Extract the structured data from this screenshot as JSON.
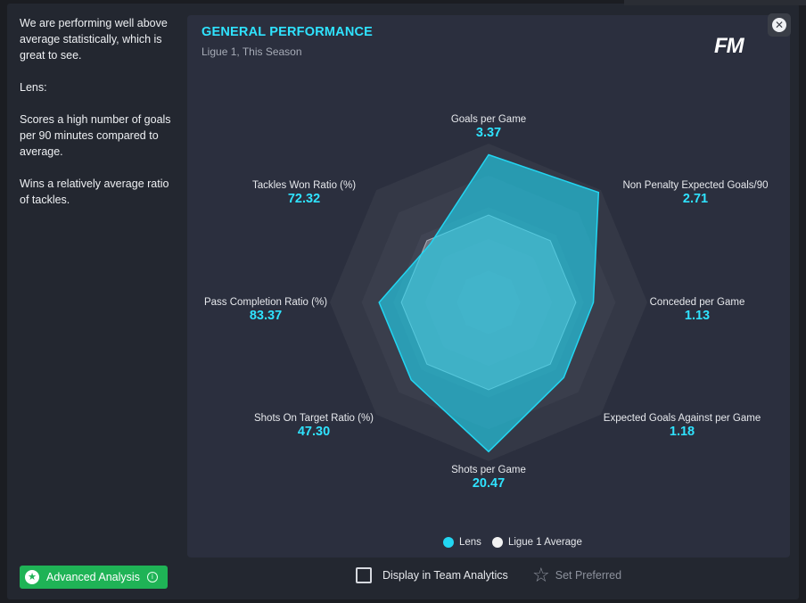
{
  "sidebar": {
    "paragraphs": [
      "We are performing well above average statistically, which is great to see.",
      "Lens:",
      "Scores a high number of goals per 90 minutes compared to average.",
      "Wins a relatively average ratio of tackles."
    ]
  },
  "panel": {
    "title": "GENERAL PERFORMANCE",
    "subtitle": "Ligue 1, This Season",
    "logo": "FM"
  },
  "chart_data": {
    "type": "radar",
    "axes": [
      {
        "name": "Goals per Game",
        "value": "3.37",
        "team": 0.93,
        "avg": 0.55
      },
      {
        "name": "Non Penalty Expected Goals/90",
        "value": "2.71",
        "team": 0.98,
        "avg": 0.55
      },
      {
        "name": "Conceded per Game",
        "value": "1.13",
        "team": 0.66,
        "avg": 0.55
      },
      {
        "name": "Expected Goals Against per Game",
        "value": "1.18",
        "team": 0.67,
        "avg": 0.55
      },
      {
        "name": "Shots per Game",
        "value": "20.47",
        "team": 0.94,
        "avg": 0.55
      },
      {
        "name": "Shots On Target Ratio (%)",
        "value": "47.30",
        "team": 0.69,
        "avg": 0.55
      },
      {
        "name": "Pass Completion Ratio (%)",
        "value": "83.37",
        "team": 0.69,
        "avg": 0.55
      },
      {
        "name": "Tackles Won Ratio (%)",
        "value": "72.32",
        "team": 0.52,
        "avg": 0.55
      }
    ],
    "series": [
      {
        "name": "Lens",
        "color": "#22d6f2"
      },
      {
        "name": "Ligue 1 Average",
        "color": "#f2f2f2"
      }
    ],
    "legend_position": "bottom"
  },
  "footer": {
    "advanced_analysis_label": "Advanced Analysis",
    "display_in_team_analytics_label": "Display in Team Analytics",
    "set_preferred_label": "Set Preferred"
  },
  "icons": {
    "close": "close-icon",
    "advanced": "star-circle-icon",
    "info": "info-icon",
    "preferred": "star-outline-icon"
  },
  "colors": {
    "accent": "#2fe3ff",
    "panel_bg": "#2b2f3e",
    "button_green": "#1fb356"
  }
}
